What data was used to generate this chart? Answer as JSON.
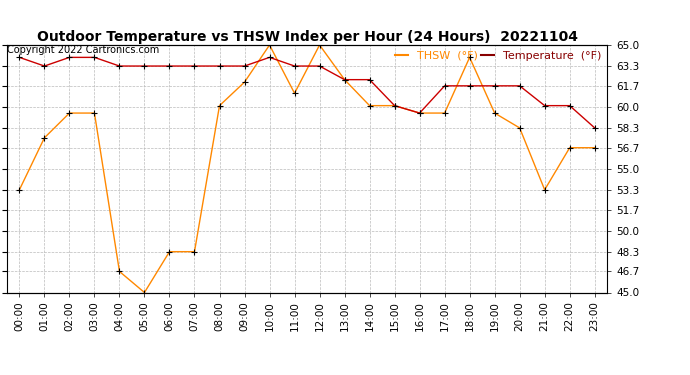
{
  "title": "Outdoor Temperature vs THSW Index per Hour (24 Hours)  20221104",
  "copyright": "Copyright 2022 Cartronics.com",
  "hours": [
    "00:00",
    "01:00",
    "02:00",
    "03:00",
    "04:00",
    "05:00",
    "06:00",
    "07:00",
    "08:00",
    "09:00",
    "10:00",
    "11:00",
    "12:00",
    "13:00",
    "14:00",
    "15:00",
    "16:00",
    "17:00",
    "18:00",
    "19:00",
    "20:00",
    "21:00",
    "22:00",
    "23:00"
  ],
  "temperature": [
    64.0,
    63.3,
    64.0,
    64.0,
    63.3,
    63.3,
    63.3,
    63.3,
    63.3,
    63.3,
    64.0,
    63.3,
    63.3,
    62.2,
    62.2,
    60.1,
    59.5,
    61.7,
    61.7,
    61.7,
    61.7,
    60.1,
    60.1,
    58.3
  ],
  "thsw": [
    53.3,
    57.5,
    59.5,
    59.5,
    46.7,
    45.0,
    48.3,
    48.3,
    60.1,
    62.0,
    65.0,
    61.1,
    65.0,
    62.2,
    60.1,
    60.1,
    59.5,
    59.5,
    64.0,
    59.5,
    58.3,
    53.3,
    56.7,
    56.7
  ],
  "temp_color": "#cc0000",
  "thsw_color": "#ff8800",
  "title_color": "#000000",
  "copyright_color": "#000000",
  "legend_thsw_color": "#ff8800",
  "legend_temp_color": "#880000",
  "ylim_min": 45.0,
  "ylim_max": 65.0,
  "yticks": [
    45.0,
    46.7,
    48.3,
    50.0,
    51.7,
    53.3,
    55.0,
    56.7,
    58.3,
    60.0,
    61.7,
    63.3,
    65.0
  ],
  "background_color": "#ffffff",
  "grid_color": "#bbbbbb",
  "title_fontsize": 10,
  "copyright_fontsize": 7,
  "legend_fontsize": 8,
  "tick_fontsize": 7.5
}
